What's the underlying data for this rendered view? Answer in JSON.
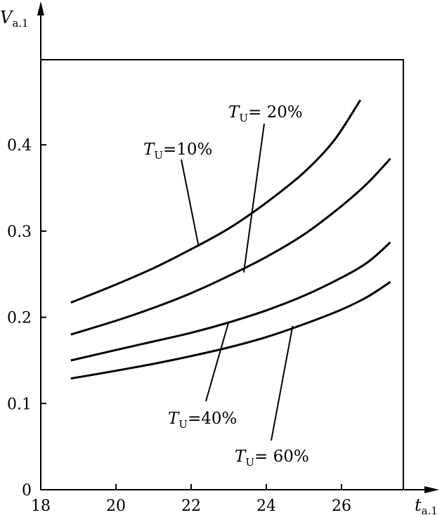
{
  "chart_data": {
    "type": "line",
    "title": "",
    "xlabel": {
      "main": "t",
      "sub": "a.1"
    },
    "ylabel": {
      "main": "V",
      "sub": "a.1"
    },
    "xlim": [
      18,
      27.4
    ],
    "ylim": [
      0,
      0.5
    ],
    "xticks": [
      18,
      20,
      22,
      24,
      26
    ],
    "yticks": [
      0,
      0.1,
      0.2,
      0.3,
      0.4
    ],
    "grid": false,
    "series": [
      {
        "name": "T_U=10%",
        "points": [
          [
            18.8,
            0.217
          ],
          [
            20,
            0.238
          ],
          [
            21,
            0.257
          ],
          [
            22,
            0.279
          ],
          [
            23,
            0.303
          ],
          [
            24,
            0.333
          ],
          [
            25,
            0.368
          ],
          [
            25.8,
            0.405
          ],
          [
            26.5,
            0.452
          ]
        ]
      },
      {
        "name": "T_U=20%",
        "points": [
          [
            18.8,
            0.18
          ],
          [
            20,
            0.196
          ],
          [
            21,
            0.211
          ],
          [
            22,
            0.228
          ],
          [
            23,
            0.248
          ],
          [
            24,
            0.27
          ],
          [
            25,
            0.296
          ],
          [
            26,
            0.329
          ],
          [
            26.7,
            0.356
          ],
          [
            27.3,
            0.384
          ]
        ]
      },
      {
        "name": "T_U=40%",
        "points": [
          [
            18.8,
            0.15
          ],
          [
            20,
            0.162
          ],
          [
            21,
            0.172
          ],
          [
            22,
            0.182
          ],
          [
            23,
            0.194
          ],
          [
            24,
            0.208
          ],
          [
            25,
            0.225
          ],
          [
            26,
            0.246
          ],
          [
            26.7,
            0.264
          ],
          [
            27.3,
            0.287
          ]
        ]
      },
      {
        "name": "T_U=60%",
        "points": [
          [
            18.8,
            0.129
          ],
          [
            20,
            0.138
          ],
          [
            21,
            0.146
          ],
          [
            22,
            0.155
          ],
          [
            23,
            0.165
          ],
          [
            24,
            0.177
          ],
          [
            25,
            0.192
          ],
          [
            26,
            0.209
          ],
          [
            26.7,
            0.224
          ],
          [
            27.3,
            0.241
          ]
        ]
      }
    ],
    "annotations": [
      {
        "id": "tu10",
        "T": "T",
        "sub": "U",
        "text": "=10%",
        "target_x": 22.2,
        "target_y": 0.282
      },
      {
        "id": "tu20",
        "T": "T",
        "sub": "U",
        "text": "= 20%",
        "target_x": 23.4,
        "target_y": 0.252
      },
      {
        "id": "tu40",
        "T": "T",
        "sub": "U",
        "text": "=40%",
        "target_x": 23.0,
        "target_y": 0.195
      },
      {
        "id": "tu60",
        "T": "T",
        "sub": "U",
        "text": "= 60%",
        "target_x": 24.7,
        "target_y": 0.19
      }
    ]
  }
}
